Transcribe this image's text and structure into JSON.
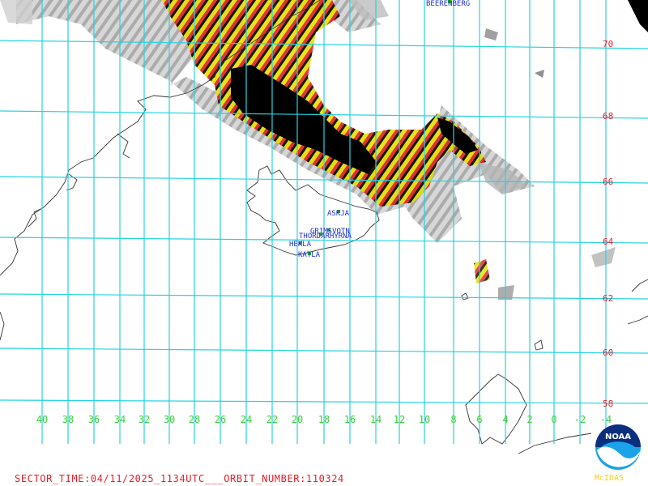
{
  "map": {
    "lat_labels": [
      "70",
      "68",
      "66",
      "64",
      "62",
      "60",
      "58"
    ],
    "lon_labels": [
      "40",
      "38",
      "36",
      "34",
      "32",
      "30",
      "28",
      "26",
      "24",
      "22",
      "20",
      "18",
      "16",
      "14",
      "12",
      "10",
      "8",
      "6",
      "4",
      "2",
      "0",
      "-2",
      "-4"
    ],
    "volcanoes": [
      "BEERENBERG",
      "ASKJA",
      "GRIMSVOTN",
      "THORDARHYRNA",
      "HEKLA",
      "KATLA"
    ],
    "colors": {
      "grid": "#27d3e0",
      "coast": "#333333",
      "lat_label": "#e8202a",
      "lon_label": "#3cd03c",
      "volcano_label": "#1c2fd8",
      "marker": "#22aa22",
      "ash_low": "#9a9a9a",
      "ash_mid": "#e5e000",
      "ash_high": "#e02020",
      "ash_max": "#000000"
    }
  },
  "footer": {
    "sector_time": "SECTOR_TIME:04/11/2025_1134UTC___ORBIT_NUMBER:110324"
  },
  "logo": {
    "noaa": "NOAA",
    "mcidas": "McIDAS"
  }
}
